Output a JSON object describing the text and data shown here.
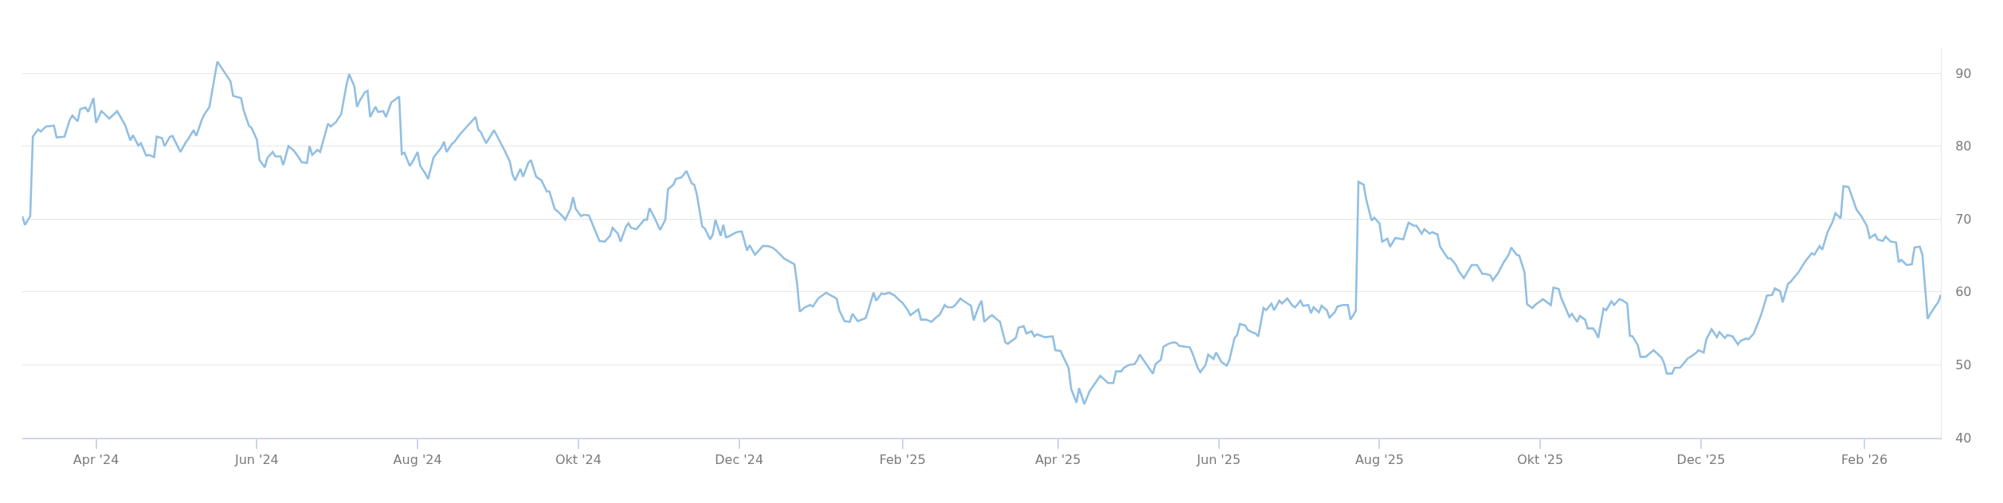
{
  "chart_data": {
    "type": "line",
    "grid": "y",
    "marker": "none",
    "line_style": "solid",
    "xlim": [
      "2024-03-04",
      "2026-03-02"
    ],
    "ylim": [
      40,
      93.5
    ],
    "xticks": [
      {
        "value": "2024-04-01",
        "label": "Apr '24"
      },
      {
        "value": "2024-06-01",
        "label": "Jun '24"
      },
      {
        "value": "2024-08-01",
        "label": "Aug '24"
      },
      {
        "value": "2024-10-01",
        "label": "Okt '24"
      },
      {
        "value": "2024-12-01",
        "label": "Dec '24"
      },
      {
        "value": "2025-02-01",
        "label": "Feb '25"
      },
      {
        "value": "2025-04-01",
        "label": "Apr '25"
      },
      {
        "value": "2025-06-01",
        "label": "Jun '25"
      },
      {
        "value": "2025-08-01",
        "label": "Aug '25"
      },
      {
        "value": "2025-10-01",
        "label": "Okt '25"
      },
      {
        "value": "2025-12-01",
        "label": "Dec '25"
      },
      {
        "value": "2026-02-01",
        "label": "Feb '26"
      }
    ],
    "yticks": [
      40,
      50,
      60,
      70,
      80,
      90
    ],
    "series": [
      {
        "color": "#92bfe2",
        "x": [
          "2024-03-04",
          "2024-03-05",
          "2024-03-07",
          "2024-03-08",
          "2024-03-10",
          "2024-03-11",
          "2024-03-13",
          "2024-03-16",
          "2024-03-17",
          "2024-03-20",
          "2024-03-22",
          "2024-03-23",
          "2024-03-25",
          "2024-03-26",
          "2024-03-28",
          "2024-03-29",
          "2024-03-31",
          "2024-04-01",
          "2024-04-03",
          "2024-04-04",
          "2024-04-06",
          "2024-04-09",
          "2024-04-12",
          "2024-04-14",
          "2024-04-15",
          "2024-04-17",
          "2024-04-18",
          "2024-04-20",
          "2024-04-21",
          "2024-04-23",
          "2024-04-24",
          "2024-04-26",
          "2024-04-27",
          "2024-04-29",
          "2024-04-30",
          "2024-05-03",
          "2024-05-05",
          "2024-05-06",
          "2024-05-08",
          "2024-05-09",
          "2024-05-11",
          "2024-05-12",
          "2024-05-14",
          "2024-05-17",
          "2024-05-22",
          "2024-05-23",
          "2024-05-26",
          "2024-05-27",
          "2024-05-29",
          "2024-05-30",
          "2024-06-01",
          "2024-06-02",
          "2024-06-04",
          "2024-06-05",
          "2024-06-07",
          "2024-06-08",
          "2024-06-10",
          "2024-06-11",
          "2024-06-13",
          "2024-06-15",
          "2024-06-17",
          "2024-06-18",
          "2024-06-20",
          "2024-06-21",
          "2024-06-22",
          "2024-06-24",
          "2024-06-25",
          "2024-06-28",
          "2024-06-29",
          "2024-07-01",
          "2024-07-03",
          "2024-07-05",
          "2024-07-06",
          "2024-07-08",
          "2024-07-09",
          "2024-07-10",
          "2024-07-12",
          "2024-07-13",
          "2024-07-14",
          "2024-07-16",
          "2024-07-17",
          "2024-07-19",
          "2024-07-20",
          "2024-07-22",
          "2024-07-25",
          "2024-07-26",
          "2024-07-27",
          "2024-07-29",
          "2024-07-30",
          "2024-08-01",
          "2024-08-02",
          "2024-08-04",
          "2024-08-05",
          "2024-08-07",
          "2024-08-08",
          "2024-08-10",
          "2024-08-11",
          "2024-08-12",
          "2024-08-14",
          "2024-08-15",
          "2024-08-17",
          "2024-08-20",
          "2024-08-21",
          "2024-08-23",
          "2024-08-24",
          "2024-08-25",
          "2024-08-27",
          "2024-08-30",
          "2024-09-02",
          "2024-09-03",
          "2024-09-05",
          "2024-09-06",
          "2024-09-07",
          "2024-09-09",
          "2024-09-10",
          "2024-09-12",
          "2024-09-13",
          "2024-09-15",
          "2024-09-17",
          "2024-09-19",
          "2024-09-20",
          "2024-09-22",
          "2024-09-23",
          "2024-09-25",
          "2024-09-26",
          "2024-09-28",
          "2024-09-29",
          "2024-09-30",
          "2024-10-02",
          "2024-10-03",
          "2024-10-05",
          "2024-10-09",
          "2024-10-11",
          "2024-10-13",
          "2024-10-14",
          "2024-10-16",
          "2024-10-17",
          "2024-10-19",
          "2024-10-20",
          "2024-10-21",
          "2024-10-23",
          "2024-10-26",
          "2024-10-27",
          "2024-10-28",
          "2024-10-30",
          "2024-11-01",
          "2024-11-03",
          "2024-11-04",
          "2024-11-06",
          "2024-11-07",
          "2024-11-09",
          "2024-11-10",
          "2024-11-11",
          "2024-11-13",
          "2024-11-14",
          "2024-11-15",
          "2024-11-17",
          "2024-11-18",
          "2024-11-20",
          "2024-11-21",
          "2024-11-22",
          "2024-11-24",
          "2024-11-25",
          "2024-11-26",
          "2024-11-27",
          "2024-11-30",
          "2024-12-02",
          "2024-12-04",
          "2024-12-05",
          "2024-12-07",
          "2024-12-09",
          "2024-12-10",
          "2024-12-12",
          "2024-12-14",
          "2024-12-15",
          "2024-12-17",
          "2024-12-18",
          "2024-12-22",
          "2024-12-23",
          "2024-12-24",
          "2024-12-26",
          "2024-12-28",
          "2024-12-29",
          "2024-12-31",
          "2025-01-03",
          "2025-01-07",
          "2025-01-08",
          "2025-01-10",
          "2025-01-12",
          "2025-01-13",
          "2025-01-15",
          "2025-01-18",
          "2025-01-19",
          "2025-01-21",
          "2025-01-22",
          "2025-01-24",
          "2025-01-25",
          "2025-01-27",
          "2025-01-29",
          "2025-01-31",
          "2025-02-01",
          "2025-02-03",
          "2025-02-04",
          "2025-02-07",
          "2025-02-08",
          "2025-02-10",
          "2025-02-12",
          "2025-02-14",
          "2025-02-15",
          "2025-02-17",
          "2025-02-18",
          "2025-02-20",
          "2025-02-21",
          "2025-02-23",
          "2025-02-24",
          "2025-02-27",
          "2025-02-28",
          "2025-03-02",
          "2025-03-03",
          "2025-03-04",
          "2025-03-06",
          "2025-03-07",
          "2025-03-09",
          "2025-03-10",
          "2025-03-12",
          "2025-03-13",
          "2025-03-16",
          "2025-03-17",
          "2025-03-19",
          "2025-03-20",
          "2025-03-22",
          "2025-03-23",
          "2025-03-24",
          "2025-03-27",
          "2025-03-30",
          "2025-03-31",
          "2025-04-02",
          "2025-04-03",
          "2025-04-05",
          "2025-04-06",
          "2025-04-08",
          "2025-04-09",
          "2025-04-11",
          "2025-04-13",
          "2025-04-14",
          "2025-04-17",
          "2025-04-20",
          "2025-04-22",
          "2025-04-23",
          "2025-04-25",
          "2025-04-26",
          "2025-04-28",
          "2025-04-30",
          "2025-05-01",
          "2025-05-02",
          "2025-05-07",
          "2025-05-08",
          "2025-05-10",
          "2025-05-11",
          "2025-05-13",
          "2025-05-15",
          "2025-05-16",
          "2025-05-17",
          "2025-05-21",
          "2025-05-22",
          "2025-05-24",
          "2025-05-25",
          "2025-05-27",
          "2025-05-28",
          "2025-05-30",
          "2025-05-31",
          "2025-06-02",
          "2025-06-04",
          "2025-06-05",
          "2025-06-07",
          "2025-06-08",
          "2025-06-09",
          "2025-06-11",
          "2025-06-12",
          "2025-06-14",
          "2025-06-15",
          "2025-06-16",
          "2025-06-18",
          "2025-06-19",
          "2025-06-21",
          "2025-06-22",
          "2025-06-24",
          "2025-06-25",
          "2025-06-27",
          "2025-06-29",
          "2025-06-30",
          "2025-07-02",
          "2025-07-03",
          "2025-07-05",
          "2025-07-06",
          "2025-07-07",
          "2025-07-09",
          "2025-07-10",
          "2025-07-12",
          "2025-07-13",
          "2025-07-15",
          "2025-07-16",
          "2025-07-18",
          "2025-07-20",
          "2025-07-21",
          "2025-07-23",
          "2025-07-24",
          "2025-07-26",
          "2025-07-27",
          "2025-07-29",
          "2025-07-30",
          "2025-08-01",
          "2025-08-02",
          "2025-08-04",
          "2025-08-05",
          "2025-08-07",
          "2025-08-10",
          "2025-08-12",
          "2025-08-14",
          "2025-08-15",
          "2025-08-17",
          "2025-08-18",
          "2025-08-20",
          "2025-08-21",
          "2025-08-23",
          "2025-08-24",
          "2025-08-26",
          "2025-08-27",
          "2025-08-28",
          "2025-08-30",
          "2025-08-31",
          "2025-09-02",
          "2025-09-03",
          "2025-09-05",
          "2025-09-07",
          "2025-09-09",
          "2025-09-10",
          "2025-09-12",
          "2025-09-13",
          "2025-09-15",
          "2025-09-16",
          "2025-09-17",
          "2025-09-19",
          "2025-09-20",
          "2025-09-22",
          "2025-09-23",
          "2025-09-25",
          "2025-09-26",
          "2025-09-28",
          "2025-09-29",
          "2025-10-02",
          "2025-10-05",
          "2025-10-06",
          "2025-10-08",
          "2025-10-09",
          "2025-10-10",
          "2025-10-12",
          "2025-10-13",
          "2025-10-15",
          "2025-10-16",
          "2025-10-18",
          "2025-10-19",
          "2025-10-21",
          "2025-10-22",
          "2025-10-23",
          "2025-10-25",
          "2025-10-26",
          "2025-10-28",
          "2025-10-29",
          "2025-10-31",
          "2025-11-01",
          "2025-11-03",
          "2025-11-04",
          "2025-11-05",
          "2025-11-07",
          "2025-11-08",
          "2025-11-10",
          "2025-11-11",
          "2025-11-13",
          "2025-11-16",
          "2025-11-17",
          "2025-11-18",
          "2025-11-20",
          "2025-11-21",
          "2025-11-23",
          "2025-11-24",
          "2025-11-26",
          "2025-11-27",
          "2025-11-29",
          "2025-11-30",
          "2025-12-02",
          "2025-12-03",
          "2025-12-05",
          "2025-12-07",
          "2025-12-08",
          "2025-12-10",
          "2025-12-11",
          "2025-12-13",
          "2025-12-15",
          "2025-12-16",
          "2025-12-18",
          "2025-12-19",
          "2025-12-21",
          "2025-12-23",
          "2025-12-24",
          "2025-12-26",
          "2025-12-28",
          "2025-12-29",
          "2025-12-31",
          "2026-01-01",
          "2026-01-03",
          "2026-01-04",
          "2026-01-06",
          "2026-01-07",
          "2026-01-09",
          "2026-01-10",
          "2026-01-12",
          "2026-01-13",
          "2026-01-15",
          "2026-01-16",
          "2026-01-18",
          "2026-01-20",
          "2026-01-21",
          "2026-01-23",
          "2026-01-24",
          "2026-01-26",
          "2026-01-28",
          "2026-01-29",
          "2026-01-31",
          "2026-02-02",
          "2026-02-03",
          "2026-02-05",
          "2026-02-06",
          "2026-02-08",
          "2026-02-09",
          "2026-02-11",
          "2026-02-13",
          "2026-02-14",
          "2026-02-15",
          "2026-02-17",
          "2026-02-19",
          "2026-02-20",
          "2026-02-22",
          "2026-02-23",
          "2026-02-25",
          "2026-02-26",
          "2026-02-28",
          "2026-03-01",
          "2026-03-02"
        ],
        "values": [
          70.4,
          69.2,
          70.4,
          81.3,
          82.3,
          82.0,
          82.7,
          82.8,
          81.2,
          81.3,
          83.6,
          84.2,
          83.4,
          85.1,
          85.3,
          84.7,
          86.6,
          83.2,
          84.8,
          84.5,
          83.8,
          84.8,
          82.9,
          80.8,
          81.5,
          80.1,
          80.4,
          78.7,
          78.8,
          78.5,
          81.3,
          81.1,
          80.0,
          81.3,
          81.4,
          79.2,
          80.5,
          81.0,
          82.2,
          81.4,
          83.5,
          84.3,
          85.4,
          91.6,
          88.9,
          86.9,
          86.6,
          84.9,
          82.8,
          82.5,
          80.9,
          78.1,
          77.1,
          78.4,
          79.2,
          78.6,
          78.6,
          77.4,
          80.0,
          79.4,
          78.4,
          77.8,
          77.7,
          80.0,
          78.8,
          79.5,
          79.2,
          83.1,
          82.7,
          83.3,
          84.4,
          88.4,
          89.9,
          88.2,
          85.4,
          86.2,
          87.4,
          87.6,
          84.0,
          85.4,
          84.7,
          84.8,
          84.0,
          86.0,
          86.8,
          78.9,
          79.1,
          77.3,
          77.8,
          79.2,
          77.3,
          76.2,
          75.5,
          78.4,
          78.9,
          79.8,
          80.6,
          79.2,
          80.3,
          80.6,
          81.6,
          82.8,
          83.2,
          84.0,
          82.3,
          81.9,
          80.4,
          82.2,
          80.1,
          79.4,
          77.9,
          76.1,
          75.3,
          76.9,
          75.8,
          77.7,
          78.1,
          75.8,
          75.3,
          73.8,
          73.8,
          71.4,
          71.1,
          70.4,
          69.9,
          71.4,
          73.0,
          71.4,
          70.4,
          70.6,
          70.5,
          67.0,
          66.9,
          67.7,
          68.8,
          68.0,
          66.9,
          68.9,
          69.4,
          68.8,
          68.6,
          69.9,
          69.9,
          71.5,
          70.1,
          68.5,
          69.9,
          74.1,
          74.7,
          75.5,
          75.7,
          76.1,
          76.6,
          74.9,
          74.7,
          73.3,
          69.0,
          68.7,
          67.2,
          67.9,
          69.9,
          67.7,
          69.2,
          67.5,
          67.6,
          68.2,
          68.3,
          65.7,
          66.4,
          65.1,
          65.9,
          66.3,
          66.3,
          66.0,
          65.7,
          65.0,
          64.6,
          63.8,
          61.1,
          57.3,
          57.9,
          58.2,
          58.0,
          59.1,
          59.9,
          59.1,
          57.5,
          56.0,
          55.9,
          57.0,
          56.0,
          56.4,
          57.5,
          59.9,
          58.8,
          59.8,
          59.7,
          59.9,
          59.5,
          58.8,
          58.5,
          57.5,
          56.8,
          57.6,
          56.2,
          56.2,
          55.9,
          56.6,
          56.8,
          58.2,
          57.9,
          57.9,
          58.2,
          59.1,
          58.8,
          58.1,
          56.1,
          58.1,
          58.8,
          55.9,
          56.6,
          56.8,
          56.2,
          55.9,
          53.1,
          52.9,
          53.7,
          55.1,
          55.3,
          54.3,
          54.6,
          53.9,
          54.2,
          53.8,
          53.9,
          52.0,
          51.9,
          51.1,
          49.6,
          46.7,
          44.8,
          46.8,
          44.6,
          46.4,
          46.9,
          48.5,
          47.5,
          47.5,
          49.1,
          49.1,
          49.6,
          50.0,
          50.1,
          50.6,
          51.4,
          48.8,
          50.1,
          50.7,
          52.5,
          52.9,
          53.1,
          53.0,
          52.6,
          52.4,
          51.6,
          49.6,
          49.0,
          50.0,
          51.4,
          50.8,
          51.7,
          50.4,
          49.9,
          50.6,
          53.7,
          54.1,
          55.6,
          55.4,
          54.8,
          54.4,
          54.3,
          53.9,
          57.8,
          57.5,
          58.4,
          57.5,
          58.8,
          58.4,
          59.1,
          58.1,
          57.9,
          58.8,
          58.1,
          58.2,
          57.1,
          57.9,
          57.2,
          58.1,
          57.5,
          56.5,
          57.2,
          58.0,
          58.2,
          58.2,
          56.2,
          57.4,
          75.1,
          74.7,
          72.6,
          69.8,
          70.2,
          69.4,
          66.9,
          67.3,
          66.2,
          67.4,
          67.2,
          69.5,
          69.1,
          69.1,
          68.0,
          68.6,
          68.0,
          68.2,
          67.9,
          66.2,
          65.1,
          64.6,
          64.6,
          63.7,
          62.9,
          61.9,
          62.5,
          63.7,
          63.7,
          62.5,
          62.5,
          62.3,
          61.6,
          62.6,
          63.3,
          64.0,
          65.1,
          66.1,
          65.1,
          65.0,
          62.7,
          58.3,
          57.8,
          58.2,
          59.0,
          58.2,
          60.6,
          60.4,
          59.1,
          58.3,
          56.6,
          57.0,
          55.9,
          56.7,
          56.2,
          55.0,
          55.0,
          54.5,
          53.7,
          57.7,
          57.5,
          58.7,
          58.2,
          59.0,
          58.9,
          58.4,
          54.0,
          53.9,
          52.7,
          51.1,
          51.1,
          51.4,
          52.0,
          51.0,
          50.2,
          48.8,
          48.8,
          49.6,
          49.6,
          50.0,
          50.9,
          51.1,
          51.6,
          52.0,
          51.7,
          53.5,
          54.9,
          53.8,
          54.5,
          53.7,
          54.1,
          53.9,
          52.8,
          53.3,
          53.6,
          53.5,
          54.3,
          56.1,
          57.1,
          59.5,
          59.6,
          60.5,
          60.1,
          58.6,
          61.1,
          61.4,
          62.3,
          62.7,
          63.9,
          64.4,
          65.3,
          65.1,
          66.3,
          65.8,
          68.2,
          69.7,
          70.8,
          70.1,
          74.5,
          74.4,
          72.3,
          71.3,
          70.3,
          69.0,
          67.4,
          67.9,
          67.2,
          67.0,
          67.6,
          66.9,
          66.8,
          64.1,
          64.4,
          63.7,
          63.8,
          66.1,
          66.2,
          65.1,
          56.3,
          57.0,
          58.1,
          58.6,
          59.6
        ]
      }
    ]
  }
}
